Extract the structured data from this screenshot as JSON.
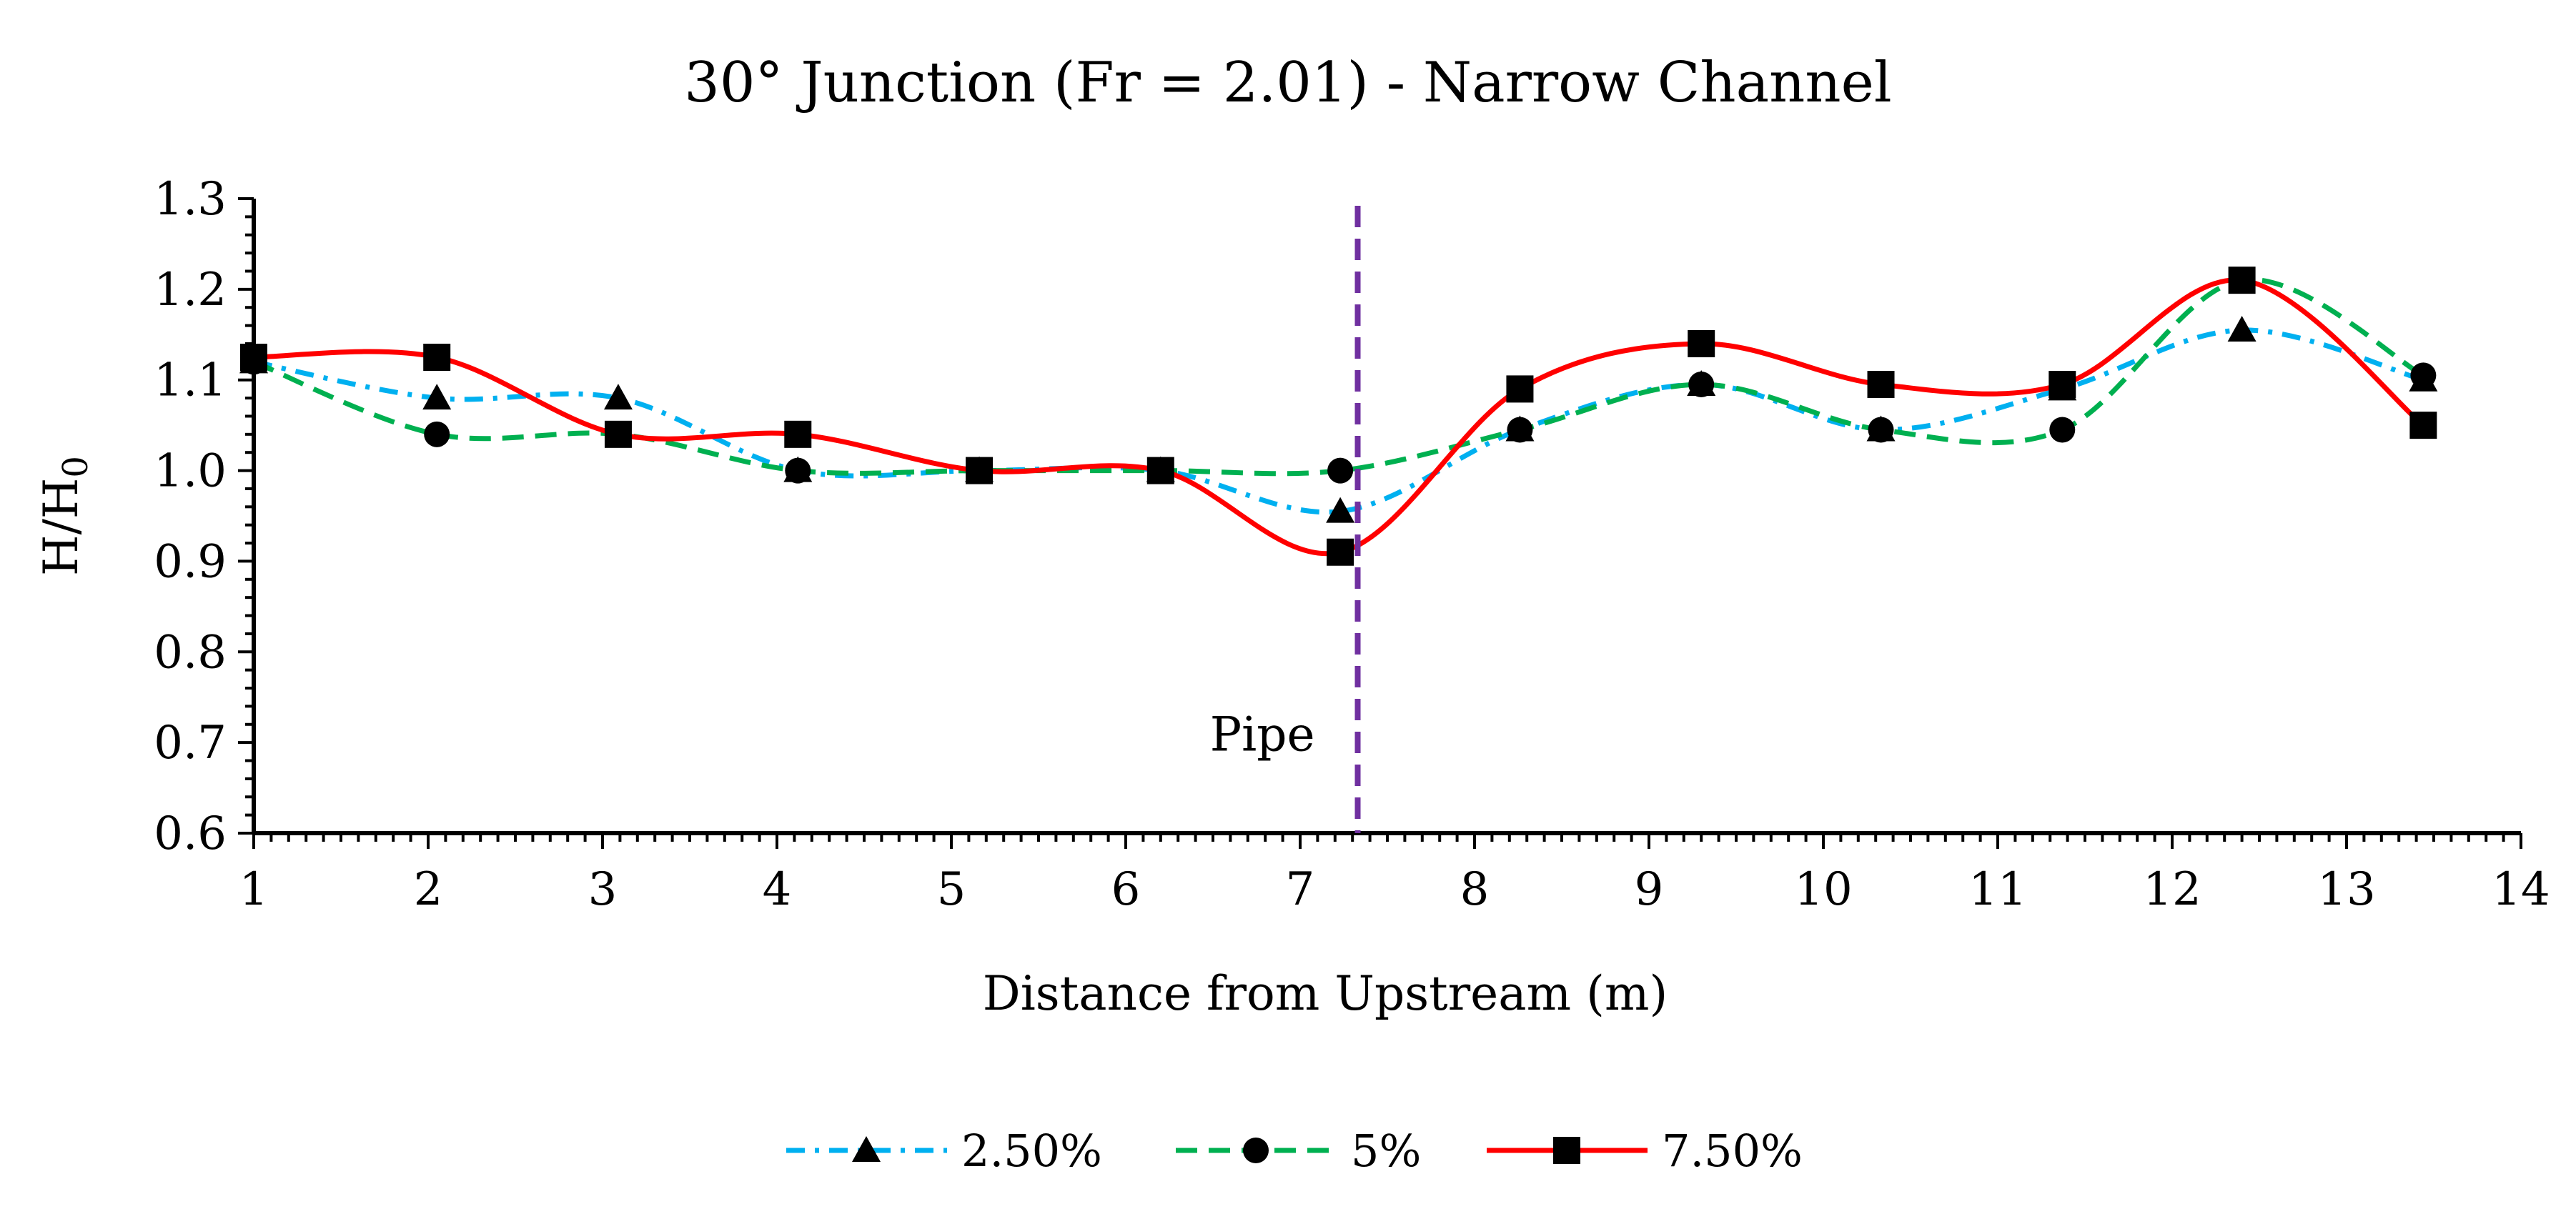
{
  "chart_data": {
    "type": "line",
    "title": "30° Junction (Fr = 2.01) - Narrow Channel",
    "xlabel": "Distance from Upstream (m)",
    "ylabel_main": "H/H",
    "ylabel_sub": "0",
    "xlim": [
      1,
      14
    ],
    "ylim": [
      0.6,
      1.3
    ],
    "xticks": [
      "1",
      "2",
      "3",
      "4",
      "5",
      "6",
      "7",
      "8",
      "9",
      "10",
      "11",
      "12",
      "13",
      "14"
    ],
    "yticks": [
      "0.6",
      "0.7",
      "0.8",
      "0.9",
      "1.0",
      "1.1",
      "1.2",
      "1.3"
    ],
    "grid": false,
    "legend_position": "bottom-center",
    "annotation": {
      "text": "Pipe",
      "x": 7.33,
      "y": 0.71,
      "line_x": 7.33,
      "line_color": "#7030A0"
    },
    "series": [
      {
        "name": "2.50%",
        "color": "#00B0F0",
        "dash": "dash-dot",
        "marker": "triangle",
        "x": [
          1.0,
          2.05,
          3.09,
          4.12,
          5.16,
          6.2,
          7.23,
          8.26,
          9.3,
          10.33,
          11.37,
          12.4,
          13.44
        ],
        "y": [
          1.12,
          1.08,
          1.08,
          1.0,
          1.0,
          1.0,
          0.955,
          1.045,
          1.095,
          1.045,
          1.09,
          1.155,
          1.1
        ]
      },
      {
        "name": "5%",
        "color": "#00B050",
        "dash": "dash",
        "marker": "circle",
        "x": [
          1.0,
          2.05,
          3.09,
          4.12,
          5.16,
          6.2,
          7.23,
          8.26,
          9.3,
          10.33,
          11.37,
          12.4,
          13.44
        ],
        "y": [
          1.12,
          1.04,
          1.04,
          1.0,
          1.0,
          1.0,
          1.0,
          1.045,
          1.095,
          1.045,
          1.045,
          1.21,
          1.105
        ]
      },
      {
        "name": "7.50%",
        "color": "#FF0000",
        "dash": "solid",
        "marker": "square",
        "x": [
          1.0,
          2.05,
          3.09,
          4.12,
          5.16,
          6.2,
          7.23,
          8.26,
          9.3,
          10.33,
          11.37,
          12.4,
          13.44
        ],
        "y": [
          1.125,
          1.125,
          1.04,
          1.04,
          1.0,
          1.0,
          0.91,
          1.09,
          1.14,
          1.095,
          1.095,
          1.21,
          1.05
        ]
      }
    ]
  }
}
